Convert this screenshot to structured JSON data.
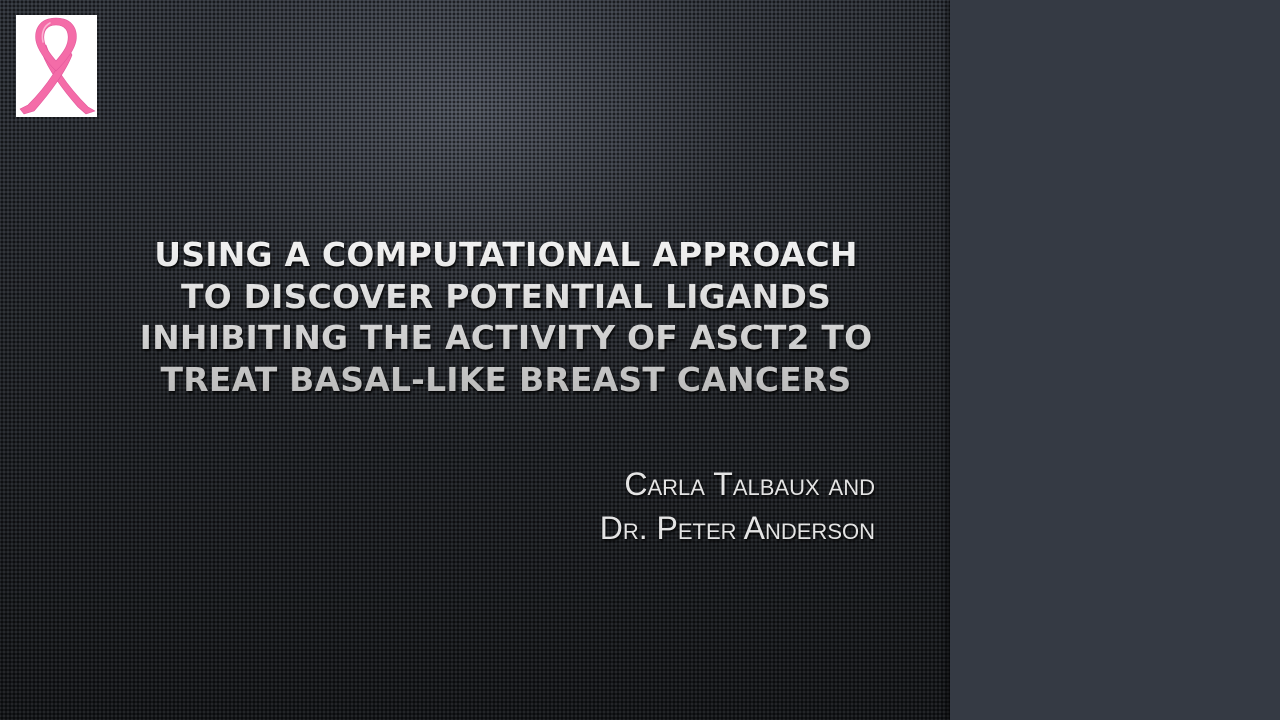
{
  "slide": {
    "logo": {
      "icon": "pink-ribbon-icon",
      "ribbon_color": "#f46ca8",
      "background_color": "#ffffff"
    },
    "title_lines": [
      "Using a Computational approach",
      "to discover potential ligands",
      "inhibiting the activity of ASCT2 to",
      "treat basal-like breast cancers"
    ],
    "authors": [
      "Carla Talbaux and",
      "Dr. Peter Anderson"
    ]
  },
  "colors": {
    "slide_background": "#25282d",
    "side_panel": "#353a44",
    "title_text": "#dcdcdc",
    "author_text": "#e4e4e4"
  }
}
